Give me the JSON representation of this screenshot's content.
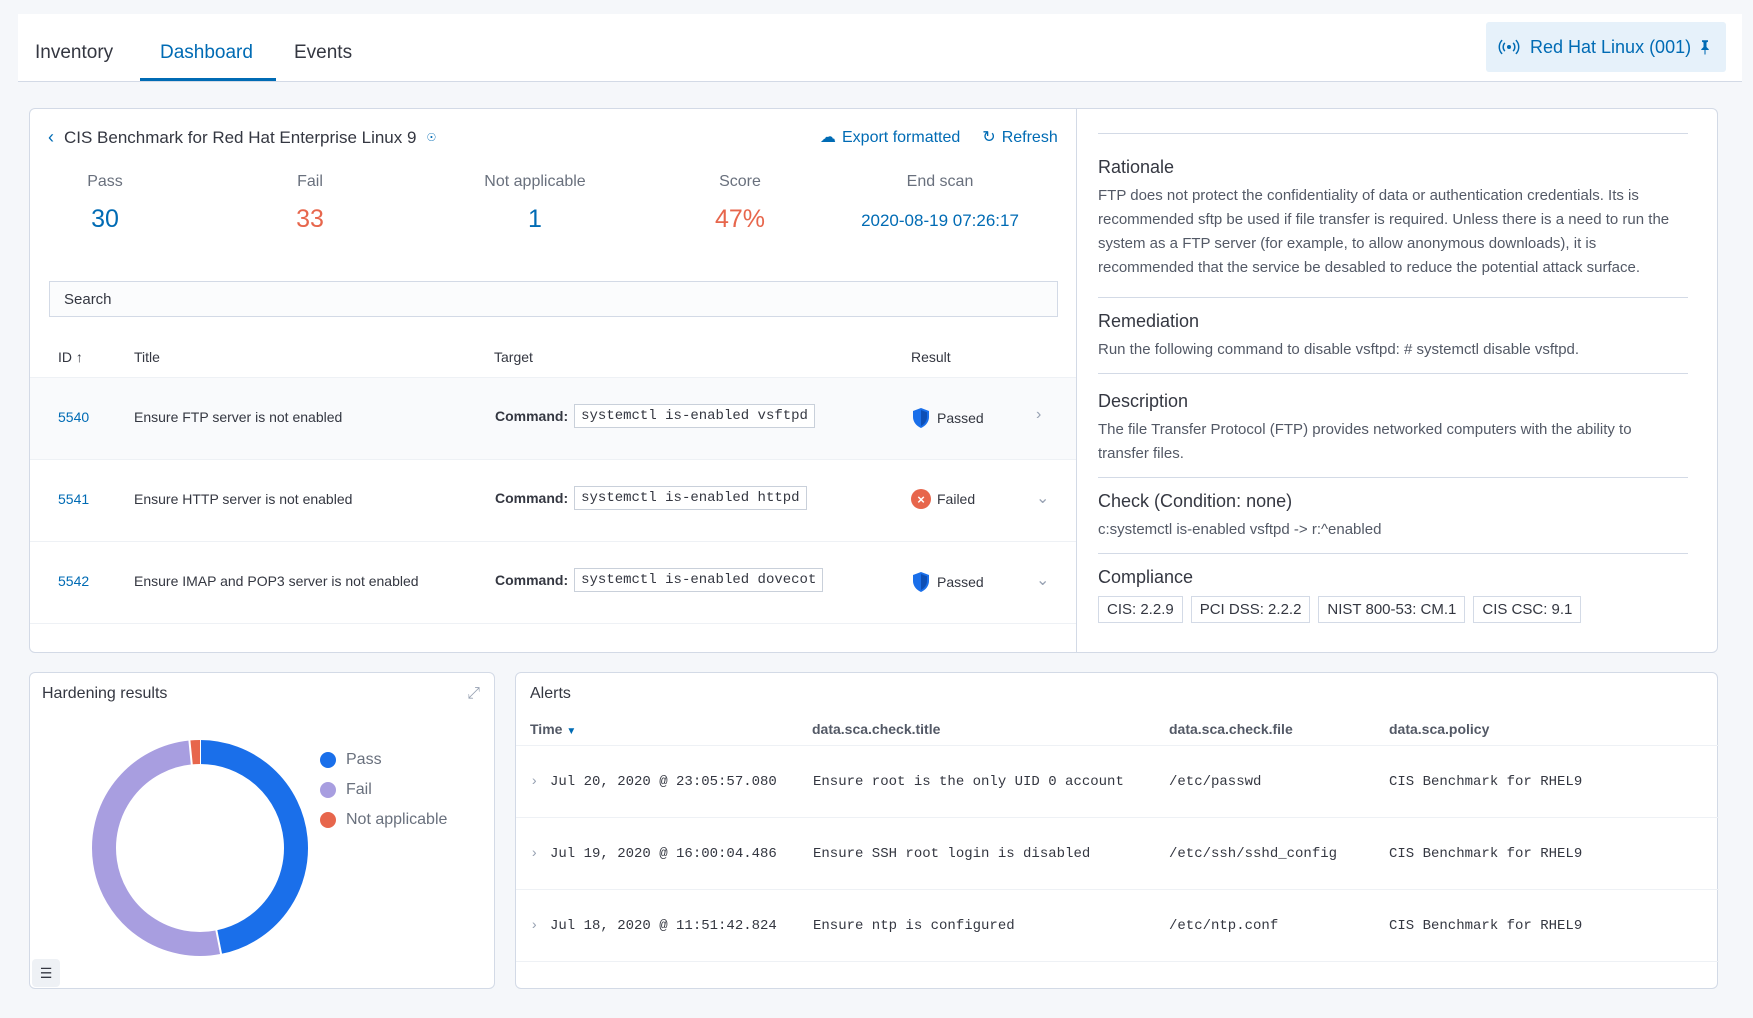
{
  "nav": {
    "tabs": [
      {
        "label": "Inventory"
      },
      {
        "label": "Dashboard"
      },
      {
        "label": "Events"
      }
    ],
    "agent_label": "Red Hat Linux (001)"
  },
  "benchmark": {
    "title": "CIS Benchmark for Red Hat Enterprise Linux 9",
    "export_label": "Export formatted",
    "refresh_label": "Refresh",
    "stats": {
      "pass_label": "Pass",
      "pass_value": "30",
      "fail_label": "Fail",
      "fail_value": "33",
      "na_label": "Not applicable",
      "na_value": "1",
      "score_label": "Score",
      "score_value": "47%",
      "end_label": "End scan",
      "end_value": "2020-08-19 07:26:17"
    },
    "search_placeholder": "Search",
    "columns": {
      "id": "ID",
      "title": "Title",
      "target": "Target",
      "result": "Result"
    },
    "rows": [
      {
        "id": "5540",
        "title": "Ensure FTP server is not enabled",
        "command_label": "Command:",
        "command": "systemctl is-enabled vsftpd",
        "result": "Passed"
      },
      {
        "id": "5541",
        "title": "Ensure HTTP server is not enabled",
        "command_label": "Command:",
        "command": "systemctl is-enabled httpd",
        "result": "Failed"
      },
      {
        "id": "5542",
        "title": "Ensure IMAP and POP3 server is not enabled",
        "command_label": "Command:",
        "command": "systemctl is-enabled dovecot",
        "result": "Passed"
      }
    ]
  },
  "detail": {
    "rationale_h": "Rationale",
    "rationale": "FTP does not protect the confidentiality of data or authentication credentials. Its is recommended sftp be used if file transfer is required. Unless there is a need to run the system as a FTP server (for example, to allow anonymous downloads), it is recommended that the service be desabled to reduce the potential attack surface.",
    "remediation_h": "Remediation",
    "remediation": "Run the following command to disable vsftpd: # systemctl disable vsftpd.",
    "description_h": "Description",
    "description": "The file Transfer Protocol (FTP) provides networked computers with the ability to transfer files.",
    "check_h": "Check (Condition: none)",
    "check": "c:systemctl is-enabled vsftpd -> r:^enabled",
    "compliance_h": "Compliance",
    "compliance": [
      "CIS: 2.2.9",
      "PCI DSS: 2.2.2",
      "NIST 800-53: CM.1",
      "CIS CSC: 9.1"
    ]
  },
  "hardening": {
    "title": "Hardening results",
    "legend": [
      "Pass",
      "Fail",
      "Not applicable"
    ],
    "colors": {
      "pass": "#1a6fea",
      "fail": "#a89ee0",
      "na": "#e7664c"
    }
  },
  "chart_data": {
    "type": "pie",
    "categories": [
      "Pass",
      "Fail",
      "Not applicable"
    ],
    "values": [
      30,
      33,
      1
    ],
    "colors": [
      "#1a6fea",
      "#a89ee0",
      "#e7664c"
    ],
    "legend": "right"
  },
  "alerts": {
    "title": "Alerts",
    "columns": {
      "time": "Time",
      "title": "data.sca.check.title",
      "file": "data.sca.check.file",
      "policy": "data.sca.policy"
    },
    "rows": [
      {
        "time": "Jul 20, 2020 @ 23:05:57.080",
        "title": "Ensure root is the only UID 0 account",
        "file": "/etc/passwd",
        "policy": "CIS Benchmark for RHEL9"
      },
      {
        "time": "Jul 19, 2020 @ 16:00:04.486",
        "title": "Ensure SSH root login is disabled",
        "file": "/etc/ssh/sshd_config",
        "policy": "CIS Benchmark for RHEL9"
      },
      {
        "time": "Jul 18, 2020 @ 11:51:42.824",
        "title": "Ensure ntp is configured",
        "file": "/etc/ntp.conf",
        "policy": "CIS Benchmark for RHEL9"
      }
    ]
  }
}
